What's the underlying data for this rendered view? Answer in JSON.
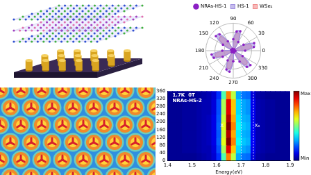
{
  "chart_data": [
    {
      "type": "polar",
      "legend": "top",
      "grid": true,
      "tick_labels": "x",
      "categories": [
        0,
        null,
        null,
        330,
        null,
        null,
        300,
        null,
        null,
        270,
        null,
        null,
        240,
        null,
        null,
        210,
        null,
        null,
        180,
        null,
        null,
        150,
        null,
        null,
        120,
        null,
        null,
        90,
        null,
        null,
        60,
        null,
        null,
        30,
        null,
        null
      ],
      "ylim": [
        0,
        1.2
      ],
      "yticks": [
        0,
        0.4,
        0.8,
        1.2
      ],
      "series": [
        {
          "name": "NRAs-HS-1",
          "type": "scatter",
          "marker": "circle",
          "color": "#8b1fc4",
          "values": [
            0.52,
            0.1,
            0.06,
            0.47,
            0.98,
            0.92,
            0.55,
            0.09,
            0.05,
            0.46,
            0.93,
            0.87,
            0.49,
            0.08,
            0.09,
            0.53,
            0.9,
            0.96,
            0.48,
            0.06,
            0.1,
            0.52,
            0.99,
            0.93,
            0.47,
            0.09,
            0.05,
            0.5,
            0.85,
            0.9,
            0.44,
            0.08,
            0.06,
            0.52,
            0.97,
            0.91
          ]
        },
        {
          "name": "WSe₂",
          "type": "area",
          "color": "#f08c8c",
          "values": [
            0.42,
            0.06,
            0.06,
            0.42,
            0.8,
            0.8,
            0.42,
            0.06,
            0.06,
            0.41,
            0.78,
            0.78,
            0.4,
            0.06,
            0.06,
            0.42,
            0.79,
            0.79,
            0.42,
            0.06,
            0.06,
            0.42,
            0.81,
            0.81,
            0.42,
            0.06,
            0.06,
            0.4,
            0.76,
            0.76,
            0.4,
            0.06,
            0.06,
            0.42,
            0.8,
            0.8
          ]
        },
        {
          "name": "HS-1",
          "type": "area",
          "color": "#a090e0",
          "values": [
            0.5,
            0.08,
            0.08,
            0.5,
            0.95,
            0.95,
            0.5,
            0.07,
            0.07,
            0.48,
            0.9,
            0.9,
            0.47,
            0.07,
            0.07,
            0.5,
            0.93,
            0.93,
            0.5,
            0.08,
            0.08,
            0.5,
            0.96,
            0.96,
            0.5,
            0.07,
            0.07,
            0.47,
            0.88,
            0.88,
            0.46,
            0.07,
            0.07,
            0.5,
            0.94,
            0.94
          ]
        }
      ]
    },
    {
      "type": "heatmap",
      "x_label": "Energy(eV)",
      "grid": false,
      "x": [
        1.41,
        1.43,
        1.45,
        1.47,
        1.49,
        1.51,
        1.53,
        1.55,
        1.57,
        1.59,
        1.61,
        1.63,
        1.65,
        1.67,
        1.69,
        1.71,
        1.73,
        1.75,
        1.77,
        1.79,
        1.81,
        1.83,
        1.85,
        1.87,
        1.89
      ],
      "y": [
        20,
        60,
        100,
        140,
        180,
        220,
        260,
        300,
        340
      ],
      "z": [
        [
          0.02,
          0.02,
          0.02,
          0.02,
          0.02,
          0.02,
          0.03,
          0.04,
          0.05,
          0.08,
          0.17,
          0.45,
          0.75,
          0.56,
          0.29,
          0.24,
          0.23,
          0.09,
          0.04,
          0.03,
          0.02,
          0.02,
          0.02,
          0.02,
          0.02
        ],
        [
          0.02,
          0.02,
          0.02,
          0.03,
          0.03,
          0.03,
          0.04,
          0.05,
          0.05,
          0.09,
          0.2,
          0.54,
          0.9,
          0.68,
          0.34,
          0.29,
          0.27,
          0.11,
          0.05,
          0.04,
          0.03,
          0.03,
          0.02,
          0.02,
          0.02
        ],
        [
          0.02,
          0.02,
          0.02,
          0.03,
          0.03,
          0.03,
          0.04,
          0.05,
          0.06,
          0.1,
          0.22,
          0.6,
          1.0,
          0.75,
          0.38,
          0.32,
          0.3,
          0.12,
          0.05,
          0.04,
          0.03,
          0.03,
          0.02,
          0.02,
          0.02
        ],
        [
          0.02,
          0.02,
          0.02,
          0.03,
          0.03,
          0.03,
          0.04,
          0.05,
          0.06,
          0.1,
          0.21,
          0.57,
          0.95,
          0.71,
          0.36,
          0.3,
          0.29,
          0.11,
          0.05,
          0.04,
          0.03,
          0.03,
          0.02,
          0.02,
          0.02
        ],
        [
          0.02,
          0.02,
          0.02,
          0.03,
          0.03,
          0.03,
          0.04,
          0.05,
          0.06,
          0.1,
          0.22,
          0.6,
          1.0,
          0.75,
          0.38,
          0.32,
          0.3,
          0.12,
          0.05,
          0.04,
          0.03,
          0.03,
          0.02,
          0.02,
          0.02
        ],
        [
          0.02,
          0.02,
          0.02,
          0.03,
          0.03,
          0.03,
          0.04,
          0.05,
          0.06,
          0.1,
          0.21,
          0.57,
          0.95,
          0.71,
          0.36,
          0.3,
          0.29,
          0.11,
          0.05,
          0.04,
          0.03,
          0.03,
          0.02,
          0.02,
          0.02
        ],
        [
          0.02,
          0.02,
          0.02,
          0.03,
          0.03,
          0.03,
          0.04,
          0.05,
          0.05,
          0.09,
          0.2,
          0.54,
          0.9,
          0.68,
          0.34,
          0.29,
          0.27,
          0.11,
          0.05,
          0.04,
          0.03,
          0.03,
          0.02,
          0.02,
          0.02
        ],
        [
          0.02,
          0.02,
          0.02,
          0.03,
          0.03,
          0.03,
          0.04,
          0.05,
          0.05,
          0.09,
          0.2,
          0.54,
          0.9,
          0.68,
          0.34,
          0.29,
          0.27,
          0.11,
          0.05,
          0.04,
          0.03,
          0.03,
          0.02,
          0.02,
          0.02
        ],
        [
          0.02,
          0.02,
          0.02,
          0.02,
          0.02,
          0.02,
          0.03,
          0.04,
          0.05,
          0.08,
          0.17,
          0.45,
          0.75,
          0.56,
          0.29,
          0.24,
          0.23,
          0.09,
          0.04,
          0.03,
          0.02,
          0.02,
          0.02,
          0.02,
          0.02
        ]
      ],
      "xlim": [
        1.4,
        1.9
      ],
      "xticks": [
        1.4,
        1.5,
        1.6,
        1.7,
        1.8,
        1.9
      ],
      "ylim": [
        0,
        360
      ],
      "yticks": [
        0,
        40,
        80,
        120,
        160,
        200,
        240,
        280,
        320,
        360
      ],
      "colorbar_lim": [
        0,
        1
      ],
      "colorbar_ticks": [
        {
          "value": 0,
          "label": "Min"
        },
        {
          "value": 1,
          "label": "Max"
        }
      ],
      "dashed_lines_x": [
        1.7,
        1.75
      ],
      "annotations": [
        {
          "text": "1.7K  0T",
          "x": 1.42,
          "y": 340
        },
        {
          "text": "NRAs-HS-2",
          "x": 1.42,
          "y": 310
        },
        {
          "text": "X",
          "x": 1.615,
          "y": 180
        },
        {
          "text": "X₀",
          "x": 1.755,
          "y": 180
        }
      ]
    }
  ]
}
